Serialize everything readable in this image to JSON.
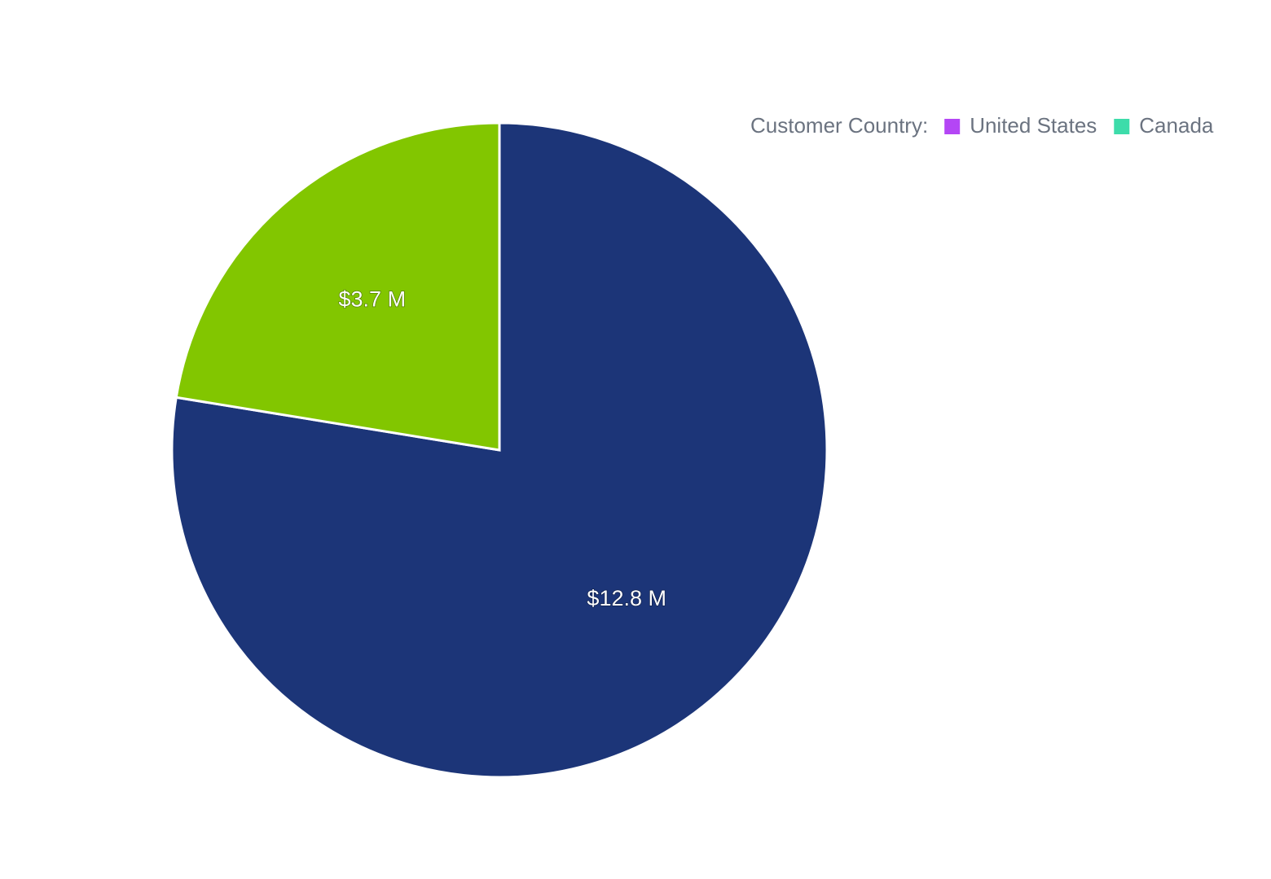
{
  "chart_data": {
    "type": "pie",
    "legend_title": "Customer Country:",
    "categories": [
      "United States",
      "Canada"
    ],
    "values": [
      12.8,
      3.7
    ],
    "value_labels": [
      "$12.8 M",
      "$3.7 M"
    ],
    "colors": [
      "#1c3578",
      "#82c600"
    ],
    "legend_colors": [
      "#b446f5",
      "#3ddcaa"
    ],
    "legend": "top-right"
  }
}
